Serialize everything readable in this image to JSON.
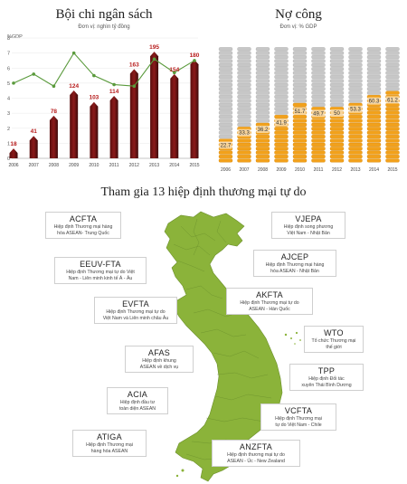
{
  "budget": {
    "title": "Bội chi ngân sách",
    "unit": "Đơn vị: nghìn tỷ đồng",
    "y_axis_label": "%GDP",
    "y_ticks": [
      "0",
      "1",
      "2",
      "3",
      "4",
      "5",
      "6",
      "7",
      "8"
    ]
  },
  "debt": {
    "title": "Nợ công",
    "unit": "Đơn vị: % GDP"
  },
  "agreements": {
    "title": "Tham gia 13 hiệp định thương mại tự do",
    "items": [
      {
        "code": "ACFTA",
        "desc1": "Hiệp định Thương mại hàng",
        "desc2": "hóa ASEAN- Trung Quốc"
      },
      {
        "code": "EEUV-FTA",
        "desc1": "Hiệp định Thương mại tự do Việt",
        "desc2": "Nam - Liên minh kinh tế Á - Âu"
      },
      {
        "code": "EVFTA",
        "desc1": "Hiệp định Thương mại tự do",
        "desc2": "Việt Nam và Liên minh châu Âu"
      },
      {
        "code": "AFAS",
        "desc1": "Hiệp định khung",
        "desc2": "ASEAN về dịch vụ"
      },
      {
        "code": "ACIA",
        "desc1": "Hiệp định đầu tư",
        "desc2": "toàn diện ASEAN"
      },
      {
        "code": "ATIGA",
        "desc1": "Hiệp định Thương mại",
        "desc2": "hàng hóa ASEAN"
      },
      {
        "code": "VJEPA",
        "desc1": "Hiệp định song phương",
        "desc2": "Việt Nam - Nhật Bản"
      },
      {
        "code": "AJCEP",
        "desc1": "Hiệp định Thương mại hàng",
        "desc2": "hóa ASEAN - Nhật Bản"
      },
      {
        "code": "AKFTA",
        "desc1": "Hiệp định Thương mại tự do",
        "desc2": "ASEAN - Hàn Quốc"
      },
      {
        "code": "WTO",
        "desc1": "Tổ chức Thương mại",
        "desc2": "thế giới"
      },
      {
        "code": "TPP",
        "desc1": "Hiệp định Đối tác",
        "desc2": "xuyên Thái Bình Dương"
      },
      {
        "code": "VCFTA",
        "desc1": "Hiệp định Thương mại",
        "desc2": "tự do Việt Nam - Chile"
      },
      {
        "code": "ANZFTA",
        "desc1": "Hiệp định thương mại tự do",
        "desc2": "ASEAN - Úc - New Zealand"
      }
    ]
  },
  "chart_data": [
    {
      "type": "bar",
      "title": "Bội chi ngân sách",
      "ylabel": "%GDP",
      "ylim": [
        0,
        8
      ],
      "categories": [
        "2006",
        "2007",
        "2008",
        "2009",
        "2010",
        "2011",
        "2012",
        "2013",
        "2014",
        "2015"
      ],
      "series": [
        {
          "values": [
            18,
            41,
            78,
            124,
            103,
            114,
            163,
            195,
            154,
            180
          ],
          "unit": "nghìn tỷ đồng",
          "axis": "value-labels"
        },
        {
          "values": [
            5.0,
            5.6,
            4.8,
            7.0,
            5.5,
            4.9,
            4.8,
            6.6,
            5.7,
            6.5
          ],
          "unit": "%GDP",
          "axis": "left"
        }
      ],
      "colors": {
        "bar": "#8b1a1a",
        "line": "#5a9a3c",
        "label": "#b71c1c"
      }
    },
    {
      "type": "bar",
      "title": "Nợ công",
      "ylabel": "% GDP",
      "ylim": [
        0,
        100
      ],
      "categories": [
        "2006",
        "2007",
        "2008",
        "2009",
        "2010",
        "2011",
        "2012",
        "2013",
        "2014",
        "2015"
      ],
      "values": [
        22.7,
        33.3,
        36.2,
        41.9,
        51.7,
        49.7,
        50,
        53.3,
        60.3,
        61.2
      ],
      "colors": {
        "fill": "#f2a11b",
        "stack": "#c7c7c7"
      }
    }
  ]
}
